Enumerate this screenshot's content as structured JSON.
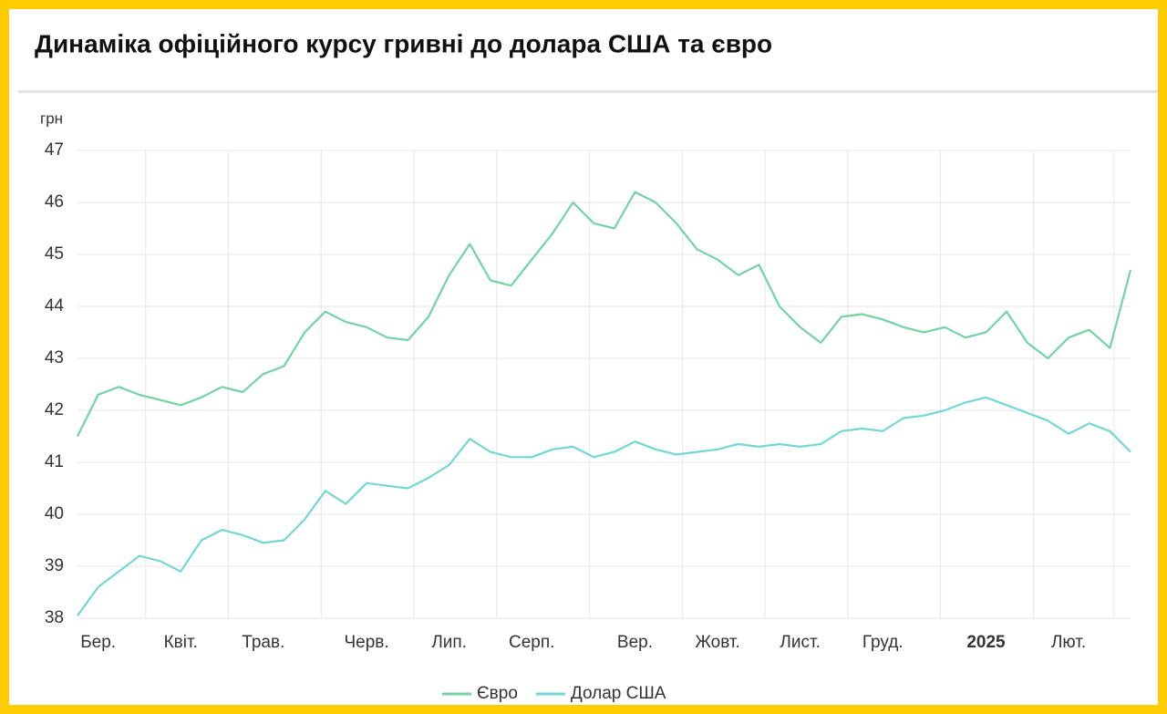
{
  "chart_data": {
    "type": "line",
    "title": "Динаміка офіційного курсу гривні до долара США та євро",
    "ylabel": "грн",
    "categories": [
      null,
      "Бер.",
      null,
      null,
      null,
      "Квіт.",
      null,
      null,
      null,
      "Трав.",
      null,
      null,
      null,
      null,
      "Черв.",
      null,
      null,
      null,
      "Лип.",
      null,
      null,
      null,
      "Серп.",
      null,
      null,
      null,
      null,
      "Вер.",
      null,
      null,
      null,
      "Жовт.",
      null,
      null,
      null,
      "Лист.",
      null,
      null,
      null,
      "Груд.",
      null,
      null,
      null,
      null,
      "2025",
      null,
      null,
      null,
      "Лют.",
      null,
      null,
      null
    ],
    "series": [
      {
        "name": "Євро",
        "color": "#74d3a2",
        "values": [
          41.5,
          42.3,
          42.45,
          42.3,
          42.2,
          42.1,
          42.25,
          42.45,
          42.35,
          42.7,
          42.85,
          43.5,
          43.9,
          43.7,
          43.6,
          43.4,
          43.35,
          43.8,
          44.6,
          45.2,
          44.5,
          44.4,
          44.9,
          45.4,
          46.0,
          45.6,
          45.5,
          46.2,
          46.0,
          45.6,
          45.1,
          44.9,
          44.6,
          44.8,
          44.0,
          43.6,
          43.3,
          43.8,
          43.85,
          43.75,
          43.6,
          43.5,
          43.6,
          43.4,
          43.5,
          43.9,
          43.3,
          43.0,
          43.4,
          43.55,
          43.2,
          44.7
        ]
      },
      {
        "name": "Долар США",
        "color": "#74d6d6",
        "values": [
          38.05,
          38.6,
          38.9,
          39.2,
          39.1,
          38.9,
          39.5,
          39.7,
          39.6,
          39.45,
          39.5,
          39.9,
          40.45,
          40.2,
          40.6,
          40.55,
          40.5,
          40.7,
          40.95,
          41.45,
          41.2,
          41.1,
          41.1,
          41.25,
          41.3,
          41.1,
          41.2,
          41.4,
          41.25,
          41.15,
          41.2,
          41.25,
          41.35,
          41.3,
          41.35,
          41.3,
          41.35,
          41.6,
          41.65,
          41.6,
          41.85,
          41.9,
          42.0,
          42.15,
          42.25,
          42.1,
          41.95,
          41.8,
          41.55,
          41.75,
          41.6,
          41.2
        ]
      }
    ],
    "ylim": [
      38,
      47
    ],
    "yticks": [
      38,
      39,
      40,
      41,
      42,
      43,
      44,
      45,
      46,
      47
    ],
    "grid": true
  }
}
